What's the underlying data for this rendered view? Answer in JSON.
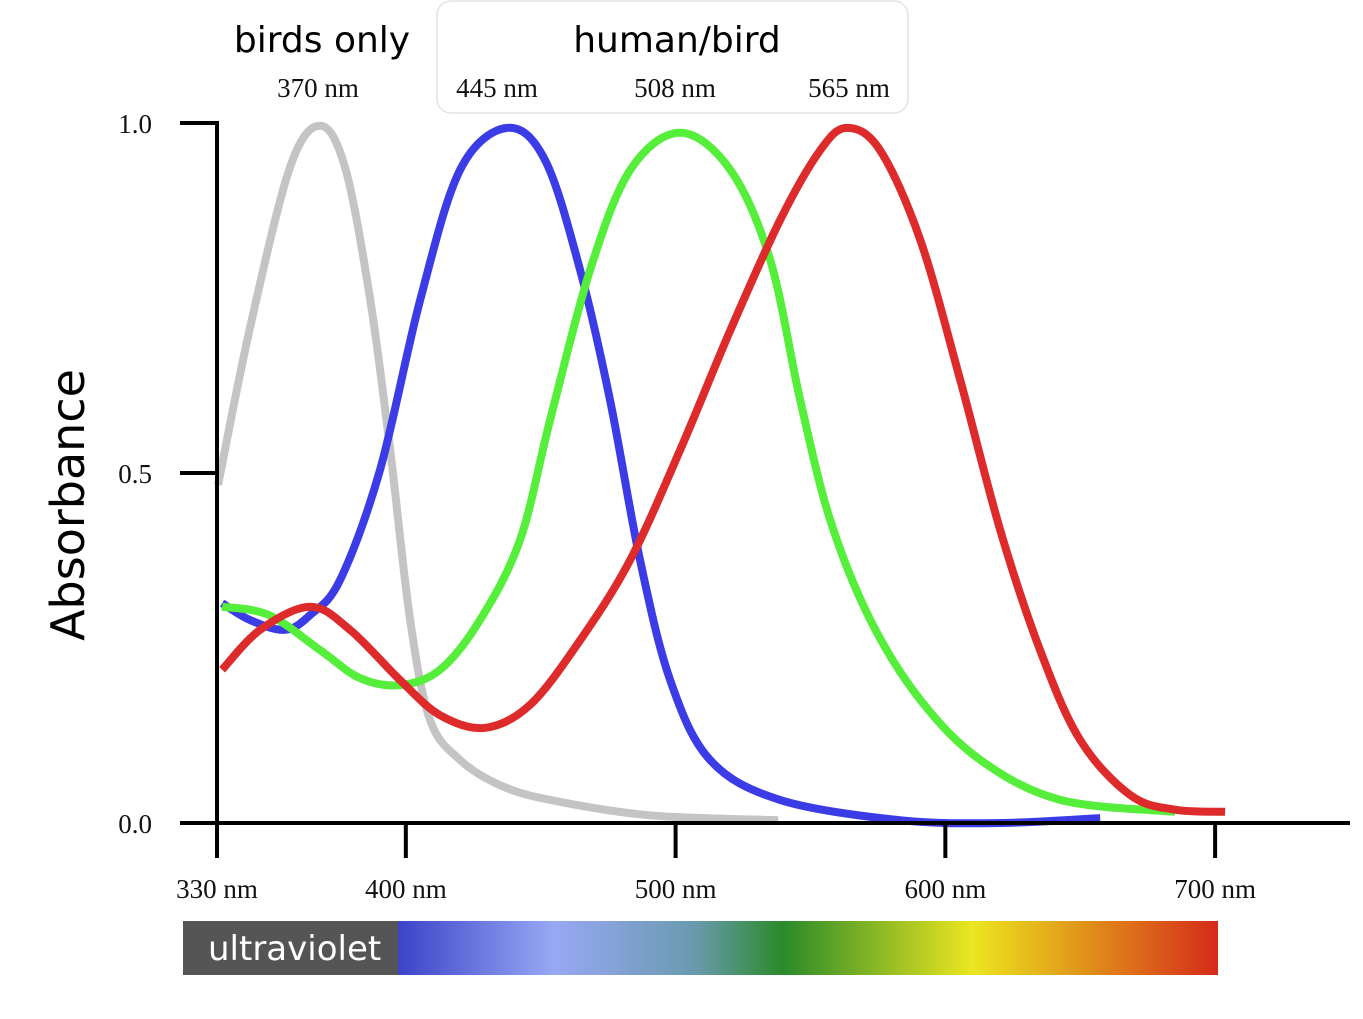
{
  "chart_data": {
    "type": "line",
    "y_label": "Absorbance",
    "group_labels": [
      "birds only",
      "human/bird"
    ],
    "peak_labels": [
      "370 nm",
      "445 nm",
      "508 nm",
      "565 nm"
    ],
    "band_label": "ultraviolet",
    "xlim": [
      330,
      750
    ],
    "ylim": [
      0,
      1
    ],
    "xticks": [
      {
        "value": 330,
        "label": "330 nm"
      },
      {
        "value": 400,
        "label": "400 nm"
      },
      {
        "value": 500,
        "label": "500 nm"
      },
      {
        "value": 600,
        "label": "600 nm"
      },
      {
        "value": 700,
        "label": "700 nm"
      }
    ],
    "yticks": [
      {
        "value": 0,
        "label": "0.0"
      },
      0.5,
      {
        "value": 1,
        "label": "1.0"
      }
    ],
    "series": [
      {
        "color": "#c4c4c4",
        "x": [
          330.4,
          342.2,
          357,
          368.2,
          377.5,
          386.7,
          394.1,
          401.6,
          409,
          420.1,
          434.9,
          453.5,
          490.5,
          538
        ],
        "values": [
          0.483,
          0.707,
          0.936,
          0.996,
          0.936,
          0.75,
          0.536,
          0.29,
          0.147,
          0.09,
          0.054,
          0.033,
          0.011,
          0.004
        ]
      },
      {
        "color": "#3c3ce6",
        "x": [
          331.9,
          342.2,
          355.2,
          364.5,
          375.6,
          390.4,
          405.3,
          420.1,
          437.5,
          451.6,
          464.6,
          475.7,
          486.8,
          498,
          512.8,
          538.7,
          583.2,
          620.3,
          657.4
        ],
        "values": [
          0.314,
          0.29,
          0.276,
          0.297,
          0.347,
          0.504,
          0.747,
          0.933,
          0.993,
          0.947,
          0.79,
          0.604,
          0.376,
          0.204,
          0.09,
          0.033,
          0.004,
          0,
          0.007
        ]
      },
      {
        "color": "#55ee3a",
        "x": [
          331.9,
          349.3,
          368.2,
          383,
          397.9,
          412.7,
          427.5,
          442.3,
          453.5,
          468.3,
          483.2,
          501.7,
          520.3,
          535.1,
          546.2,
          557.3,
          572.2,
          590.7,
          613,
          642.6,
          685.2
        ],
        "values": [
          0.309,
          0.297,
          0.247,
          0.207,
          0.197,
          0.219,
          0.29,
          0.404,
          0.576,
          0.79,
          0.933,
          0.986,
          0.933,
          0.804,
          0.604,
          0.433,
          0.29,
          0.176,
          0.09,
          0.033,
          0.016
        ]
      },
      {
        "color": "#dd2a2a",
        "x": [
          331.9,
          346,
          364.5,
          379.3,
          397.9,
          412.7,
          429.4,
          446.1,
          464.6,
          483.2,
          501.7,
          520.3,
          538.7,
          553.6,
          563.6,
          575.8,
          590.7,
          605.5,
          620.3,
          635.1,
          649.9,
          668.5,
          685.2,
          703.7
        ],
        "values": [
          0.219,
          0.276,
          0.309,
          0.276,
          0.204,
          0.154,
          0.136,
          0.169,
          0.261,
          0.376,
          0.533,
          0.704,
          0.861,
          0.961,
          0.993,
          0.961,
          0.833,
          0.633,
          0.419,
          0.247,
          0.119,
          0.04,
          0.019,
          0.016
        ]
      }
    ]
  }
}
